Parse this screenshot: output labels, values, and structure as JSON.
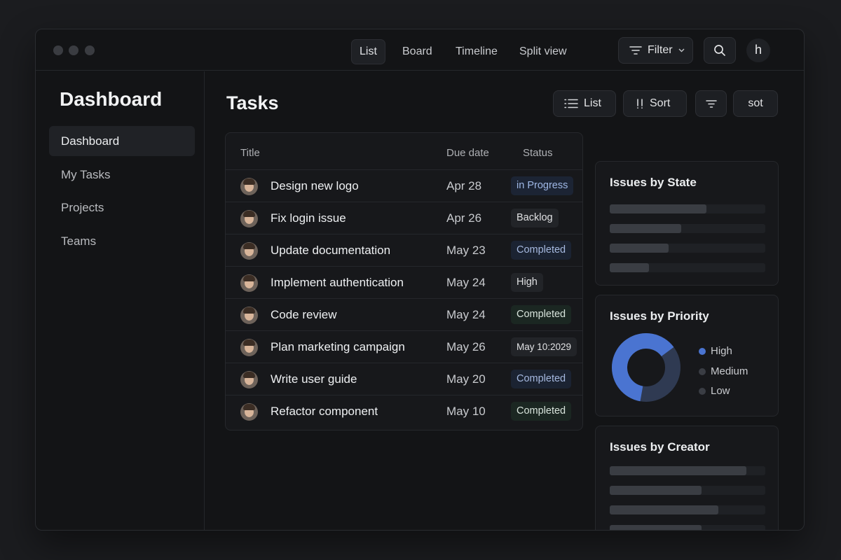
{
  "titlebar": {
    "tabs": [
      {
        "label": "List",
        "active": true
      },
      {
        "label": "Board",
        "active": false
      },
      {
        "label": "Timeline",
        "active": false
      },
      {
        "label": "Split view",
        "active": false
      }
    ],
    "filter_label": "Filter",
    "avatar_initial": "h"
  },
  "sidebar": {
    "title": "Dashboard",
    "items": [
      {
        "label": "Dashboard",
        "active": true
      },
      {
        "label": "My Tasks",
        "active": false
      },
      {
        "label": "Projects",
        "active": false
      },
      {
        "label": "Teams",
        "active": false
      }
    ]
  },
  "main": {
    "title": "Tasks",
    "toolbar": {
      "list_label": "List",
      "sort_label": "Sort",
      "extra_label": "sot"
    },
    "table": {
      "headers": {
        "title": "Title",
        "due": "Due date",
        "status": "Status"
      },
      "rows": [
        {
          "title": "Design new logo",
          "due": "Apr 28",
          "status": "in Progress",
          "status_style": "progress"
        },
        {
          "title": "Fix login issue",
          "due": "Apr 26",
          "status": "Backlog",
          "status_style": "backlog"
        },
        {
          "title": "Update documentation",
          "due": "May 23",
          "status": "Completed",
          "status_style": "done-blue"
        },
        {
          "title": "Implement authentication",
          "due": "May 24",
          "status": "High",
          "status_style": "high"
        },
        {
          "title": "Code review",
          "due": "May 24",
          "status": "Completed",
          "status_style": "done-green"
        },
        {
          "title": "Plan marketing campaign",
          "due": "May 26",
          "status": "May 10:2029",
          "status_style": "date"
        },
        {
          "title": "Write user guide",
          "due": "May 20",
          "status": "Completed",
          "status_style": "done-blue"
        },
        {
          "title": "Refactor component",
          "due": "May 10",
          "status": "Completed",
          "status_style": "done-green"
        }
      ]
    }
  },
  "panels": {
    "state": {
      "title": "Issues by State",
      "bars": [
        0.62,
        0.46,
        0.38,
        0.25
      ]
    },
    "priority": {
      "title": "Issues by Priority",
      "legend": [
        {
          "label": "High",
          "color": "#4a74d1"
        },
        {
          "label": "Medium",
          "color": "#3a3d44"
        },
        {
          "label": "Low",
          "color": "#3a3d44"
        }
      ],
      "donut": {
        "primary_fraction": 0.62,
        "primary_color": "#4a74d1",
        "secondary_color": "#2f3a52"
      }
    },
    "creator": {
      "title": "Issues by Creator",
      "bars": [
        0.88,
        0.59,
        0.7,
        0.59
      ]
    }
  },
  "colors": {
    "accent": "#4a74d1",
    "background": "#131416"
  }
}
